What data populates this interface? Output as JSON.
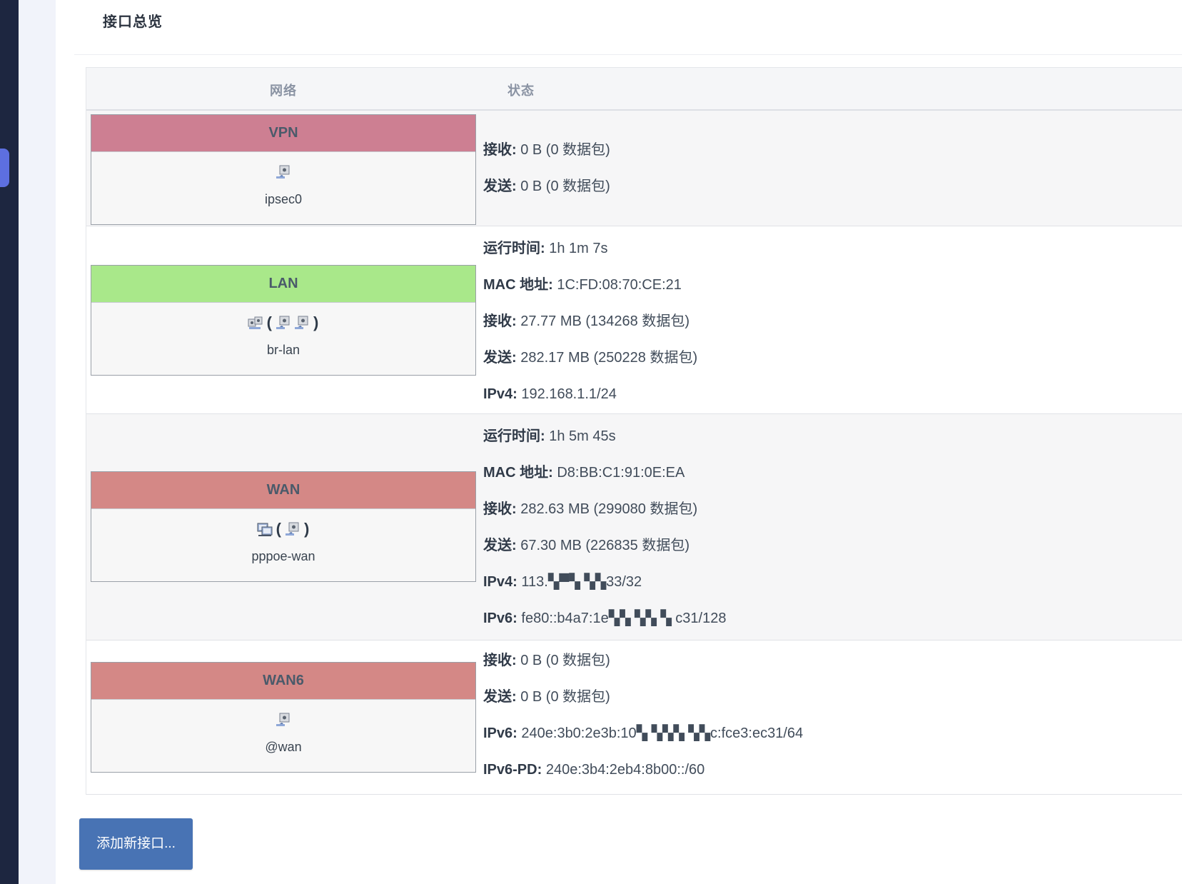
{
  "page": {
    "section_title": "接口总览",
    "columns": {
      "network": "网络",
      "status": "状态"
    },
    "add_button_label": "添加新接口..."
  },
  "colors": {
    "vpn": "#cd7f92",
    "lan": "#a9e88a",
    "wan": "#d48886",
    "wan6": "#d48886",
    "add_button": "#4873b4",
    "sidebar_dark": "#1d2640",
    "sidebar_accent": "#5d6fe0"
  },
  "interfaces": [
    {
      "name": "VPN",
      "device": "ipsec0",
      "icons": [
        "network-port-icon"
      ],
      "status": [
        {
          "key": "接收",
          "value": "0 B (0 数据包)"
        },
        {
          "key": "发送",
          "value": "0 B (0 数据包)"
        }
      ]
    },
    {
      "name": "LAN",
      "device": "br-lan",
      "icons": [
        "bridge-icon",
        "network-port-icon",
        "network-port-icon"
      ],
      "status": [
        {
          "key": "运行时间",
          "value": "1h 1m 7s"
        },
        {
          "key": "MAC 地址",
          "value": "1C:FD:08:70:CE:21"
        },
        {
          "key": "接收",
          "value": "27.77 MB (134268 数据包)"
        },
        {
          "key": "发送",
          "value": "282.17 MB (250228 数据包)"
        },
        {
          "key": "IPv4",
          "value": "192.168.1.1/24"
        }
      ]
    },
    {
      "name": "WAN",
      "device": "pppoe-wan",
      "icons": [
        "computer-icon",
        "network-port-icon"
      ],
      "status": [
        {
          "key": "运行时间",
          "value": "1h 5m 45s"
        },
        {
          "key": "MAC 地址",
          "value": "D8:BB:C1:91:0E:EA"
        },
        {
          "key": "接收",
          "value": "282.63 MB (299080 数据包)"
        },
        {
          "key": "发送",
          "value": "67.30 MB (226835 数据包)"
        },
        {
          "key": "IPv4",
          "value": "113.▚▀▚ ▚▚33/32"
        },
        {
          "key": "IPv6",
          "value": "fe80::b4a7:1e▚▚ ▚▚ ▚ c31/128"
        }
      ]
    },
    {
      "name": "WAN6",
      "device": "@wan",
      "icons": [
        "network-port-icon"
      ],
      "status": [
        {
          "key": "接收",
          "value": "0 B (0 数据包)"
        },
        {
          "key": "发送",
          "value": "0 B (0 数据包)"
        },
        {
          "key": "IPv6",
          "value": "240e:3b0:2e3b:10▚ ▚▚▚ ▚▚c:fce3:ec31/64"
        },
        {
          "key": "IPv6-PD",
          "value": "240e:3b4:2eb4:8b00::/60"
        }
      ]
    }
  ]
}
